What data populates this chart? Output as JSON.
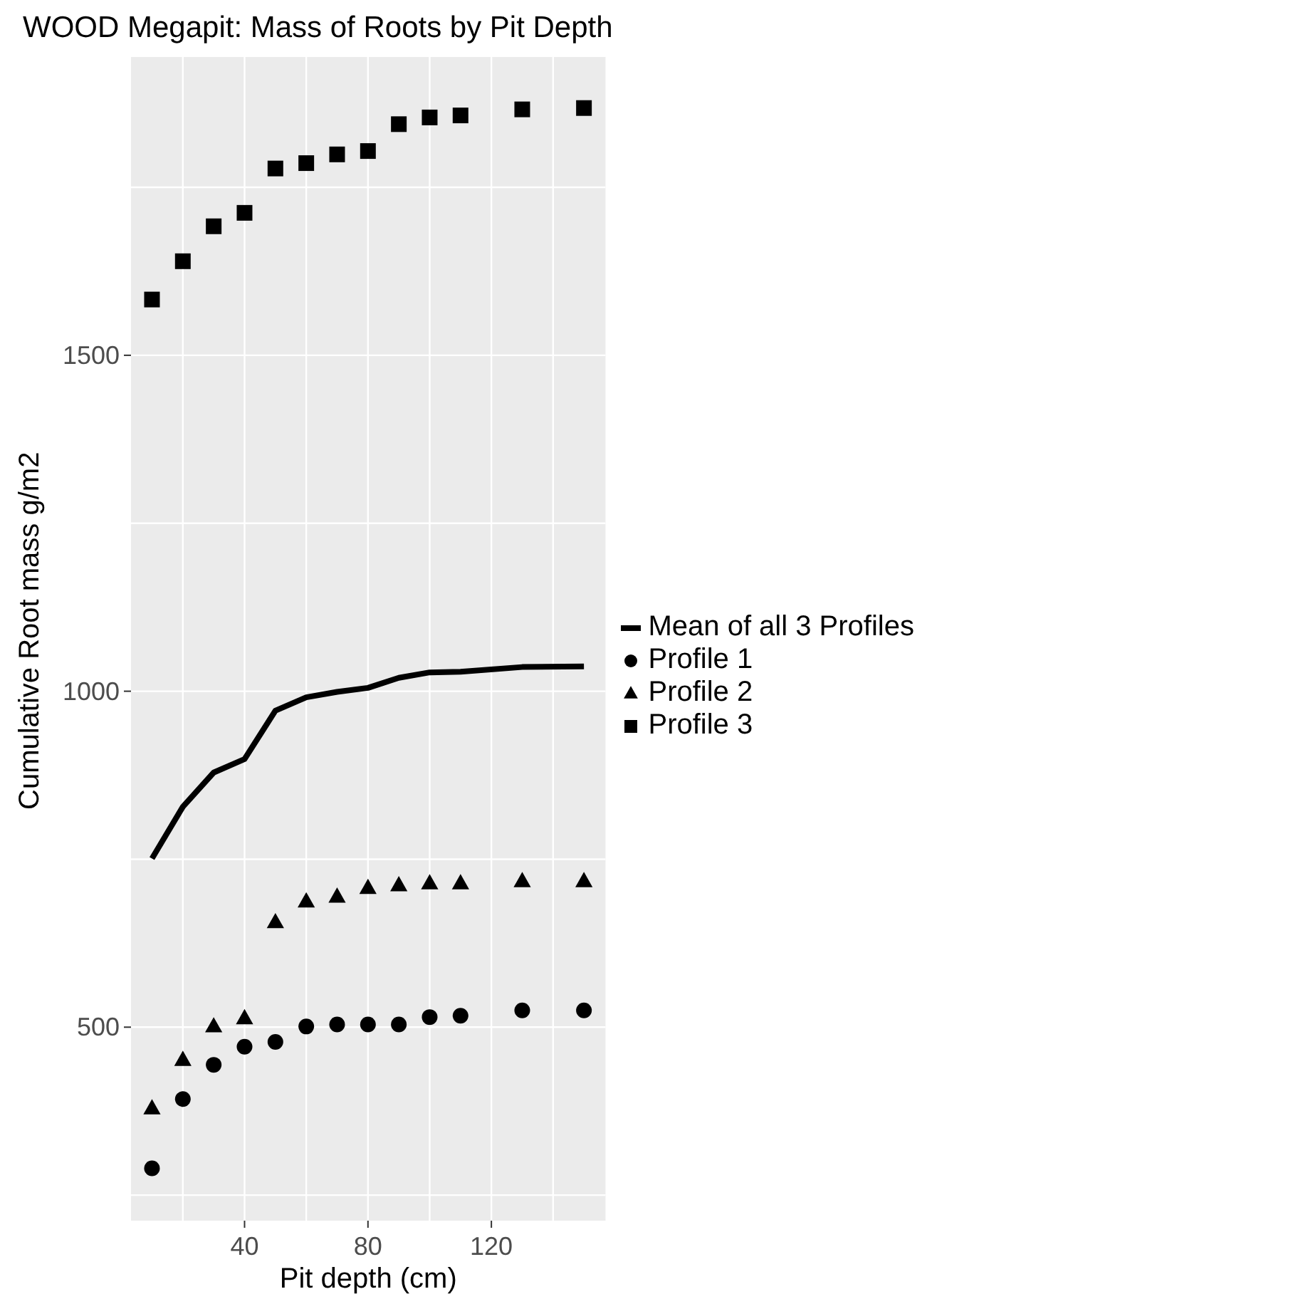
{
  "chart_data": {
    "type": "scatter",
    "title": "WOOD Megapit: Mass of Roots by Pit Depth",
    "xlabel": "Pit depth (cm)",
    "ylabel": "Cumulative Root mass g/m2",
    "x": [
      10,
      20,
      30,
      40,
      50,
      60,
      70,
      80,
      90,
      100,
      110,
      130,
      150
    ],
    "series": [
      {
        "name": "Mean of all 3 Profiles",
        "type": "line",
        "color": "#000000",
        "marker": "none",
        "values": [
          751,
          828,
          879,
          899,
          971,
          991,
          999,
          1005,
          1020,
          1028,
          1029,
          1036,
          1037
        ]
      },
      {
        "name": "Profile 1",
        "color": "#000000",
        "marker": "circle",
        "values": [
          290,
          393,
          444,
          471,
          478,
          501,
          504,
          504,
          504,
          515,
          517,
          525,
          525
        ]
      },
      {
        "name": "Profile 2",
        "color": "#000000",
        "marker": "triangle",
        "values": [
          379,
          451,
          501,
          513,
          656,
          687,
          694,
          707,
          711,
          714,
          714,
          717,
          717
        ]
      },
      {
        "name": "Profile 3",
        "color": "#000000",
        "marker": "square",
        "values": [
          1583,
          1640,
          1692,
          1712,
          1778,
          1786,
          1799,
          1804,
          1844,
          1854,
          1857,
          1866,
          1868
        ]
      }
    ],
    "xlim": [
      3.2,
      157
    ],
    "xticks": [
      {
        "value": 20,
        "label": null
      },
      40,
      {
        "value": 60,
        "label": null
      },
      80,
      {
        "value": 100,
        "label": null
      },
      120,
      {
        "value": 140,
        "label": null
      }
    ],
    "ylim": [
      212,
      1944
    ],
    "yticks": [
      {
        "value": 250,
        "label": null
      },
      500,
      {
        "value": 750,
        "label": null
      },
      1000,
      {
        "value": 1250,
        "label": null
      },
      1500,
      {
        "value": 1750,
        "label": null
      }
    ],
    "grid": true,
    "legend": "right"
  }
}
